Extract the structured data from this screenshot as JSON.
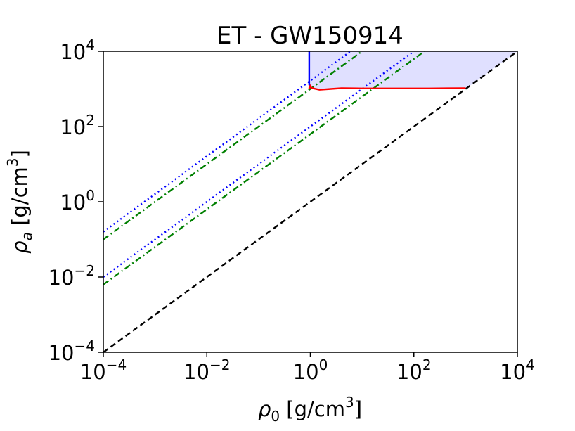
{
  "chart_data": {
    "type": "line",
    "title": "ET - GW150914",
    "xlabel": {
      "prefix": "ρ",
      "sub": "0",
      "suffix": " [g/cm",
      "sup": "3",
      "end": "]"
    },
    "ylabel": {
      "prefix": "ρ",
      "sub": "a",
      "suffix": " [g/cm",
      "sup": "3",
      "end": "]"
    },
    "xscale": "log",
    "yscale": "log",
    "xlim": [
      0.0001,
      10000
    ],
    "ylim": [
      0.0001,
      10000
    ],
    "grid": false,
    "xticks": [
      {
        "value": 0.0001,
        "base": "10",
        "exp": "−4"
      },
      {
        "value": 0.01,
        "base": "10",
        "exp": "−2"
      },
      {
        "value": 1,
        "base": "10",
        "exp": "0"
      },
      {
        "value": 100,
        "base": "10",
        "exp": "2"
      },
      {
        "value": 10000,
        "base": "10",
        "exp": "4"
      }
    ],
    "yticks": [
      {
        "value": 0.0001,
        "base": "10",
        "exp": "−4"
      },
      {
        "value": 0.01,
        "base": "10",
        "exp": "−2"
      },
      {
        "value": 1,
        "base": "10",
        "exp": "0"
      },
      {
        "value": 100,
        "base": "10",
        "exp": "2"
      },
      {
        "value": 10000,
        "base": "10",
        "exp": "4"
      }
    ],
    "series": [
      {
        "style": "dashed",
        "color": "#000000",
        "x": [
          0.0001,
          10000
        ],
        "y": [
          0.0001,
          10000
        ]
      },
      {
        "style": "dotted",
        "color": "#0000ff",
        "x": [
          0.0001,
          6.0
        ],
        "y": [
          0.16,
          10000
        ]
      },
      {
        "style": "dotted",
        "color": "#0000ff",
        "x": [
          0.0001,
          100
        ],
        "y": [
          0.01,
          10000
        ]
      },
      {
        "style": "dashdot",
        "color": "#008000",
        "x": [
          0.0001,
          10.0
        ],
        "y": [
          0.1,
          10000
        ]
      },
      {
        "style": "dashdot",
        "color": "#008000",
        "x": [
          0.0001,
          160
        ],
        "y": [
          0.0063,
          10000
        ]
      },
      {
        "style": "solid",
        "color": "#ff0000",
        "x": [
          0.95,
          0.97,
          1.02,
          1.15,
          1.5,
          2.5,
          4,
          10,
          40,
          200,
          1000
        ],
        "y": [
          1000,
          1300,
          1100,
          1030,
          950,
          1000,
          1050,
          1030,
          1030,
          1030,
          1050
        ]
      },
      {
        "style": "solid",
        "color": "#0000ff",
        "x": [
          0.95,
          0.95
        ],
        "y": [
          1250,
          10000
        ]
      }
    ],
    "fill_region": {
      "color": "#e0e0ff",
      "x": [
        0.95,
        0.97,
        1.02,
        1.15,
        1.5,
        2.5,
        4,
        10,
        40,
        200,
        1000,
        1000,
        10000,
        0.95
      ],
      "y": [
        1000,
        1300,
        1100,
        1030,
        950,
        1000,
        1050,
        1030,
        1030,
        1030,
        1050,
        1000,
        10000,
        10000
      ]
    }
  }
}
